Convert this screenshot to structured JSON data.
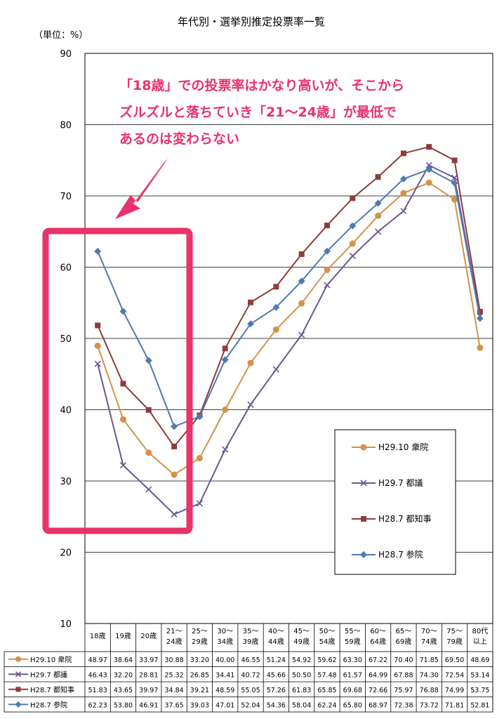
{
  "chart_data": {
    "type": "line",
    "title": "年代別・選挙別推定投票率一覧",
    "unit_label": "（単位：%）",
    "ylim": [
      10,
      90
    ],
    "yticks": [
      "10",
      "20",
      "30",
      "40",
      "50",
      "60",
      "70",
      "80",
      "90"
    ],
    "categories": [
      [
        "18歳"
      ],
      [
        "19歳"
      ],
      [
        "20歳"
      ],
      [
        "21～",
        "24歳"
      ],
      [
        "25～",
        "29歳"
      ],
      [
        "30～",
        "34歳"
      ],
      [
        "35～",
        "39歳"
      ],
      [
        "40～",
        "44歳"
      ],
      [
        "45～",
        "49歳"
      ],
      [
        "50～",
        "54歳"
      ],
      [
        "55～",
        "59歳"
      ],
      [
        "60～",
        "64歳"
      ],
      [
        "65～",
        "69歳"
      ],
      [
        "70～",
        "74歳"
      ],
      [
        "75～",
        "79歳"
      ],
      [
        "80代",
        "以上"
      ]
    ],
    "series": [
      {
        "name": "H29.10 衆院",
        "color": "#d4924a",
        "marker": "circle",
        "values": [
          48.97,
          38.64,
          33.97,
          30.88,
          33.2,
          40.0,
          46.55,
          51.24,
          54.92,
          59.62,
          63.3,
          67.22,
          70.4,
          71.85,
          69.5,
          48.69
        ]
      },
      {
        "name": "H29.7 都議",
        "color": "#6b5693",
        "marker": "x",
        "values": [
          46.43,
          32.2,
          28.81,
          25.32,
          26.85,
          34.41,
          40.72,
          45.66,
          50.5,
          57.48,
          61.57,
          64.99,
          67.88,
          74.3,
          72.54,
          53.14
        ]
      },
      {
        "name": "H28.7 都知事",
        "color": "#8e3d3b",
        "marker": "square",
        "values": [
          51.83,
          43.65,
          39.97,
          34.84,
          39.21,
          48.59,
          55.05,
          57.26,
          61.83,
          65.85,
          69.68,
          72.66,
          75.97,
          76.88,
          74.99,
          53.75
        ]
      },
      {
        "name": "H28.7 参院",
        "color": "#4f7ab3",
        "marker": "diamond",
        "values": [
          62.23,
          53.8,
          46.91,
          37.65,
          39.03,
          47.01,
          52.04,
          54.36,
          58.04,
          62.24,
          65.8,
          68.97,
          72.38,
          73.72,
          71.81,
          52.81
        ]
      }
    ],
    "table_values": [
      [
        "48.97",
        "38.64",
        "33.97",
        "30.88",
        "33.20",
        "40.00",
        "46.55",
        "51.24",
        "54.92",
        "59.62",
        "63.30",
        "67.22",
        "70.40",
        "71.85",
        "69.50",
        "48.69"
      ],
      [
        "46.43",
        "32.20",
        "28.81",
        "25.32",
        "26.85",
        "34.41",
        "40.72",
        "45.66",
        "50.50",
        "57.48",
        "61.57",
        "64.99",
        "67.88",
        "74.30",
        "72.54",
        "53.14"
      ],
      [
        "51.83",
        "43.65",
        "39.97",
        "34.84",
        "39.21",
        "48.59",
        "55.05",
        "57.26",
        "61.83",
        "65.85",
        "69.68",
        "72.66",
        "75.97",
        "76.88",
        "74.99",
        "53.75"
      ],
      [
        "62.23",
        "53.80",
        "46.91",
        "37.65",
        "39.03",
        "47.01",
        "52.04",
        "54.36",
        "58.04",
        "62.24",
        "65.80",
        "68.97",
        "72.38",
        "73.72",
        "71.81",
        "52.81"
      ]
    ],
    "grid": true,
    "legend_position": "right-middle",
    "annotation": {
      "lines": [
        "「18歳」での投票率はかなり高いが、そこから",
        "ズルズルと落ちていき「21～24歳」が最低で",
        "あるのは変わらない"
      ],
      "color": "#e8336b"
    }
  }
}
